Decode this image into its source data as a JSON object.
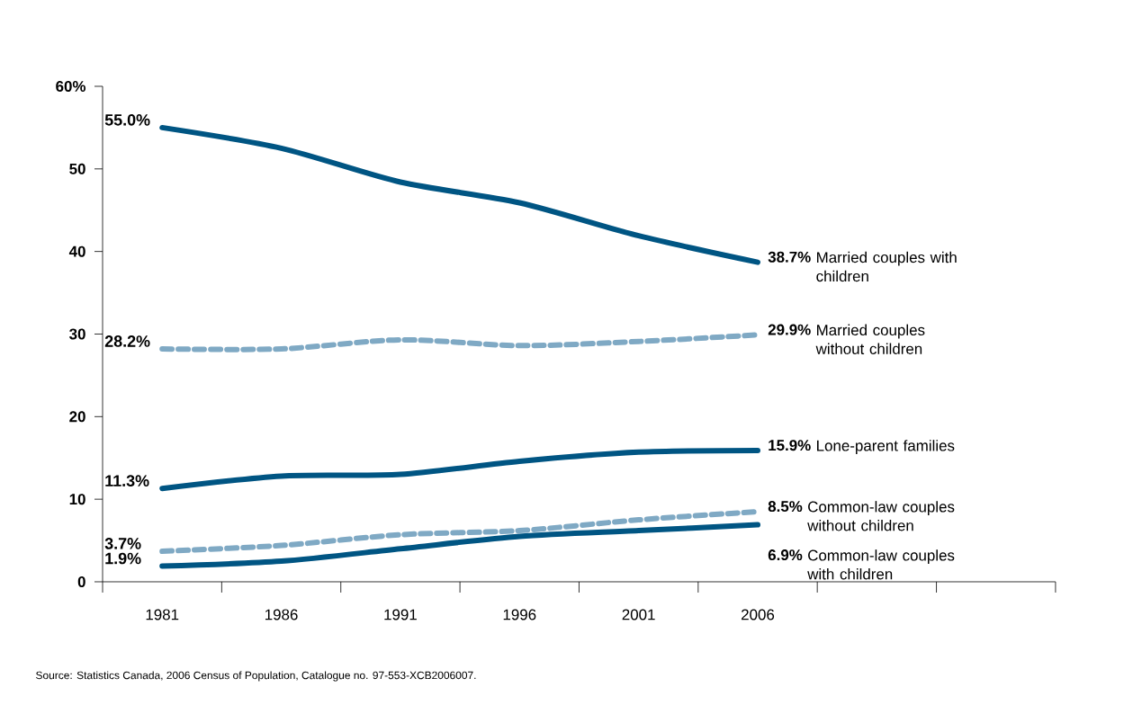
{
  "chart_data": {
    "type": "line",
    "categories": [
      "1981",
      "1986",
      "1991",
      "1996",
      "2001",
      "2006"
    ],
    "ylim": [
      0,
      60
    ],
    "yticks": [
      0,
      10,
      20,
      30,
      40,
      50,
      {
        "value": 60,
        "label": "60%"
      }
    ],
    "grid": false,
    "legend": false,
    "marker": "none",
    "series": [
      {
        "name": "Married couples with children",
        "color": "#005583",
        "line_style": "solid",
        "values": [
          55.0,
          52.5,
          48.4,
          45.9,
          41.9,
          38.7
        ],
        "value_labels": [
          "55.0%",
          null,
          null,
          null,
          null,
          "38.7%"
        ]
      },
      {
        "name": "Married couples without children",
        "color": "#7fa9c4",
        "line_style": "dashed",
        "values": [
          28.2,
          28.2,
          29.3,
          28.6,
          29.1,
          29.9
        ],
        "value_labels": [
          "28.2%",
          null,
          null,
          null,
          null,
          "29.9%"
        ]
      },
      {
        "name": "Lone-parent families",
        "color": "#005583",
        "line_style": "solid",
        "values": [
          11.3,
          12.8,
          13.0,
          14.6,
          15.7,
          15.9
        ],
        "value_labels": [
          "11.3%",
          null,
          null,
          null,
          null,
          "15.9%"
        ]
      },
      {
        "name": "Common-law couples without children",
        "color": "#7fa9c4",
        "line_style": "dashed",
        "values": [
          3.7,
          4.4,
          5.7,
          6.2,
          7.5,
          8.5
        ],
        "value_labels": [
          "3.7%",
          null,
          null,
          null,
          null,
          "8.5%"
        ]
      },
      {
        "name": "Common-law couples with children",
        "color": "#005583",
        "line_style": "solid",
        "values": [
          1.9,
          2.5,
          4.0,
          5.5,
          6.2,
          6.9
        ],
        "value_labels": [
          "1.9%",
          null,
          null,
          null,
          null,
          "6.9%"
        ]
      }
    ],
    "annotations": [
      "Source: Statistics Canada, 2006 Census of Population, Catalogue no. 97-553-XCB2006007."
    ]
  }
}
